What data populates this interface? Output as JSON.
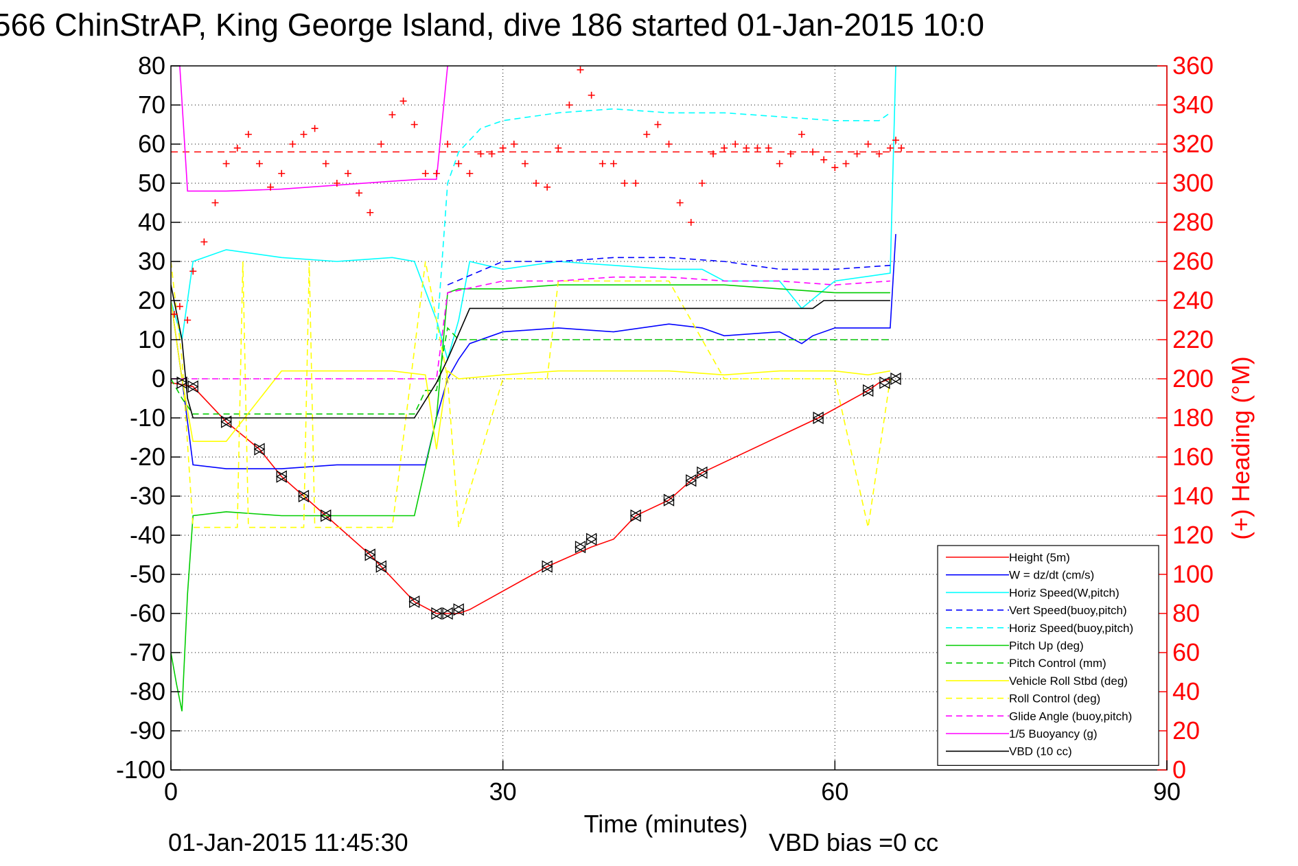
{
  "chart_data": {
    "type": "line",
    "title": "566 ChinStrAP, King George Island, dive 186 started 01-Jan-2015 10:0",
    "xlabel": "Time (minutes)",
    "ylabel_right": "(+) Heading (°M)",
    "footer_left": "01-Jan-2015 11:45:30",
    "footer_right": "VBD bias =0 cc",
    "xlim": [
      0,
      90
    ],
    "ylim": [
      -100,
      80
    ],
    "ylim_right": [
      0,
      360
    ],
    "x_ticks": [
      "0",
      "30",
      "60",
      "90"
    ],
    "y_ticks": [
      "80",
      "70",
      "60",
      "50",
      "40",
      "30",
      "20",
      "10",
      "0",
      "-10",
      "-20",
      "-30",
      "-40",
      "-50",
      "-60",
      "-70",
      "-80",
      "-90",
      "-100"
    ],
    "y_ticks_right": [
      "360",
      "340",
      "320",
      "300",
      "280",
      "260",
      "240",
      "220",
      "200",
      "180",
      "160",
      "140",
      "120",
      "100",
      "80",
      "60",
      "40",
      "20",
      "0"
    ],
    "grid": true,
    "legend_position": "bottom-right",
    "heading_reference_line": 316,
    "series": [
      {
        "name": "Height (5m)",
        "color": "#ff0000",
        "style": "solid",
        "x": [
          0,
          2,
          5,
          8,
          10,
          12,
          14,
          18,
          19,
          22,
          24,
          26,
          27,
          34,
          38,
          40,
          42,
          45,
          47,
          48,
          58.5,
          63,
          64,
          65
        ],
        "y": [
          -1,
          -2,
          -11,
          -18,
          -25,
          -30,
          -35,
          -45,
          -48,
          -57,
          -60,
          -60,
          -59,
          -48,
          -43,
          -41,
          -35,
          -31,
          -26,
          -24,
          -10,
          -3,
          -1,
          0
        ]
      },
      {
        "name": "W = dz/dt (cm/s)",
        "color": "#0000ff",
        "style": "solid",
        "x": [
          0,
          1,
          2,
          5,
          10,
          15,
          20,
          23,
          24,
          25,
          26,
          27,
          30,
          35,
          40,
          45,
          48,
          50,
          55,
          57,
          58,
          60,
          65,
          65.5
        ],
        "y": [
          20,
          0,
          -22,
          -23,
          -23,
          -22,
          -22,
          -22,
          -10,
          0,
          5,
          9,
          12,
          13,
          12,
          14,
          13,
          11,
          12,
          9,
          11,
          13,
          13,
          37
        ]
      },
      {
        "name": "Horiz Speed(W,pitch)",
        "color": "#00ffff",
        "style": "solid",
        "x": [
          0,
          1,
          2,
          5,
          10,
          15,
          20,
          22,
          24,
          25,
          26,
          27,
          30,
          35,
          40,
          45,
          48,
          50,
          55,
          57,
          60,
          65,
          65.5
        ],
        "y": [
          20,
          10,
          30,
          33,
          31,
          30,
          31,
          30,
          15,
          5,
          15,
          30,
          28,
          30,
          29,
          28,
          28,
          25,
          25,
          18,
          25,
          27,
          80
        ]
      },
      {
        "name": "Vert Speed(buoy,pitch)",
        "color": "#0000ff",
        "style": "dashed",
        "x": [
          25,
          30,
          35,
          40,
          45,
          50,
          55,
          60,
          65
        ],
        "y": [
          24,
          30,
          30,
          31,
          31,
          30,
          28,
          28,
          29
        ]
      },
      {
        "name": "Horiz Speed(buoy,pitch)",
        "color": "#00ffff",
        "style": "dashed",
        "x": [
          24,
          25,
          26,
          28,
          30,
          35,
          40,
          45,
          50,
          55,
          60,
          64,
          65
        ],
        "y": [
          10,
          50,
          58,
          64,
          66,
          68,
          69,
          68,
          68,
          67,
          66,
          66,
          68
        ]
      },
      {
        "name": "Pitch Up (deg)",
        "color": "#00cc00",
        "style": "solid",
        "x": [
          0,
          0.5,
          1,
          1.5,
          2,
          5,
          10,
          15,
          20,
          22,
          24,
          25,
          26,
          30,
          35,
          40,
          45,
          50,
          55,
          60,
          65
        ],
        "y": [
          -70,
          -78,
          -85,
          -55,
          -35,
          -34,
          -35,
          -35,
          -35,
          -35,
          -10,
          22,
          23,
          23,
          24,
          24,
          24,
          24,
          23,
          22,
          22
        ]
      },
      {
        "name": "Pitch Control (mm)",
        "color": "#00cc00",
        "style": "dashed",
        "x": [
          0,
          1,
          2,
          22,
          23,
          24,
          25,
          26,
          30,
          40,
          50,
          60,
          65
        ],
        "y": [
          0,
          -5,
          -9,
          -9,
          -3,
          -3,
          13,
          10,
          10,
          10,
          10,
          10,
          10
        ]
      },
      {
        "name": "Vehicle Roll Stbd (deg)",
        "color": "#ffff00",
        "style": "solid",
        "x": [
          0,
          1,
          2,
          5,
          10,
          15,
          20,
          23,
          24,
          25,
          26,
          30,
          35,
          40,
          45,
          50,
          55,
          60,
          63,
          65
        ],
        "y": [
          20,
          0,
          -16,
          -16,
          2,
          2,
          2,
          1,
          -18,
          2,
          0,
          1,
          2,
          2,
          2,
          1,
          2,
          2,
          1,
          2
        ]
      },
      {
        "name": "Roll Control (deg)",
        "color": "#ffff00",
        "style": "dashed",
        "x": [
          0,
          1,
          2,
          6,
          6.5,
          7,
          12,
          12.5,
          13,
          20,
          23,
          25,
          26,
          30,
          34,
          35,
          45,
          50,
          58,
          60,
          63,
          65
        ],
        "y": [
          30,
          5,
          -38,
          -38,
          30,
          -38,
          -38,
          30,
          -38,
          -38,
          30,
          0,
          -38,
          0,
          0,
          25,
          25,
          0,
          0,
          0,
          -38,
          0
        ]
      },
      {
        "name": "Glide Angle (buoy,pitch)",
        "color": "#ff00ff",
        "style": "dashed",
        "x": [
          0,
          24,
          25,
          30,
          35,
          40,
          45,
          50,
          55,
          60,
          65
        ],
        "y": [
          0,
          0,
          22,
          25,
          25,
          26,
          26,
          25,
          25,
          24,
          25
        ]
      },
      {
        "name": "1/5 Buoyancy (g)",
        "color": "#ff00ff",
        "style": "solid",
        "x": [
          0.8,
          1.5,
          5,
          10,
          15,
          20,
          22.5,
          24,
          25
        ],
        "y": [
          80,
          48,
          48,
          48.5,
          49.5,
          50.5,
          51,
          51,
          80
        ]
      },
      {
        "name": "VBD (10 cc)",
        "color": "#000000",
        "style": "solid",
        "x": [
          0,
          1,
          1.5,
          2,
          22,
          24,
          25,
          27,
          30,
          35,
          40,
          45,
          50,
          55,
          58,
          59,
          65
        ],
        "y": [
          24,
          10,
          -5,
          -10,
          -10,
          -1,
          5,
          18,
          18,
          18,
          18,
          18,
          18,
          18,
          18,
          20,
          20
        ]
      }
    ],
    "heading_series": {
      "name": "(+) Heading (°M)",
      "color": "#ff0000",
      "marker": "+",
      "x": [
        0.3,
        0.8,
        1.5,
        2,
        3,
        4,
        5,
        6,
        7,
        8,
        9,
        10,
        11,
        12,
        13,
        14,
        15,
        16,
        17,
        18,
        19,
        20,
        21,
        22,
        23,
        24,
        25,
        26,
        27,
        28,
        29,
        30,
        31,
        32,
        33,
        34,
        35,
        36,
        37,
        38,
        39,
        40,
        41,
        42,
        43,
        44,
        45,
        46,
        47,
        48,
        49,
        50,
        51,
        52,
        53,
        54,
        55,
        56,
        57,
        58,
        59,
        60,
        61,
        62,
        63,
        64,
        65,
        65.5,
        66
      ],
      "y": [
        233,
        237,
        230,
        255,
        270,
        290,
        310,
        318,
        325,
        310,
        298,
        305,
        320,
        325,
        328,
        310,
        300,
        305,
        295,
        285,
        320,
        335,
        342,
        330,
        305,
        305,
        320,
        310,
        305,
        315,
        315,
        318,
        320,
        310,
        300,
        298,
        318,
        340,
        358,
        345,
        310,
        310,
        300,
        300,
        325,
        330,
        320,
        290,
        280,
        300,
        315,
        318,
        320,
        318,
        318,
        318,
        310,
        315,
        325,
        316,
        312,
        308,
        310,
        315,
        320,
        315,
        318,
        322,
        318
      ]
    },
    "marker_series": {
      "name": "triangles",
      "x": [
        1,
        2,
        5,
        8,
        10,
        12,
        14,
        18,
        19,
        22,
        24,
        25,
        26,
        34,
        37,
        38,
        42,
        45,
        47,
        48,
        58.5,
        63,
        64.5,
        65.5
      ],
      "y": [
        -1,
        -2,
        -11,
        -18,
        -25,
        -30,
        -35,
        -45,
        -48,
        -57,
        -60,
        -60,
        -59,
        -48,
        -43,
        -41,
        -35,
        -31,
        -26,
        -24,
        -10,
        -3,
        -1,
        0
      ]
    }
  }
}
